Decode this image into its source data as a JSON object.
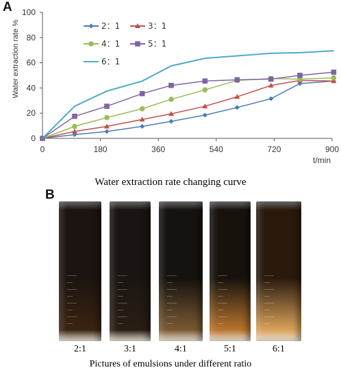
{
  "panel_a": {
    "label": "A",
    "caption": "Water extraction rate changing curve"
  },
  "panel_b": {
    "label": "B",
    "caption": "Pictures of emulsions under different ratio",
    "tubes": [
      {
        "label": "2:1",
        "top_color": "#1c1410",
        "bottom_color": "#3a2410"
      },
      {
        "label": "3:1",
        "top_color": "#1a1512",
        "bottom_color": "#2a1e14"
      },
      {
        "label": "4:1",
        "top_color": "#16120f",
        "bottom_color": "#7a5a33"
      },
      {
        "label": "5:1",
        "top_color": "#18120d",
        "bottom_color": "#b8752e"
      },
      {
        "label": "6:1",
        "top_color": "#2a1a0e",
        "bottom_color": "#d9a25a"
      }
    ]
  },
  "chart_data": {
    "type": "line",
    "title": "",
    "xlabel": "t/min",
    "ylabel": "Water extraction rate %",
    "xlim": [
      0,
      900
    ],
    "ylim": [
      0,
      100
    ],
    "xticks": [
      0,
      180,
      360,
      540,
      720,
      900
    ],
    "yticks": [
      0,
      20,
      40,
      60,
      80,
      100
    ],
    "grid": false,
    "legend_position": "top-left",
    "x": [
      0,
      100,
      200,
      310,
      400,
      505,
      605,
      710,
      800,
      905
    ],
    "series": [
      {
        "name": "2：1",
        "marker": "diamond",
        "color": "#4a7ab8",
        "values": [
          0,
          3,
          5.5,
          9.5,
          13.5,
          18.5,
          24.5,
          31.5,
          43.5,
          45.5
        ]
      },
      {
        "name": "3：1",
        "marker": "triangle",
        "color": "#c0504d",
        "values": [
          0,
          5.5,
          9.5,
          15,
          19.5,
          25.5,
          33,
          42,
          46,
          45.5
        ]
      },
      {
        "name": "4：1",
        "marker": "circle",
        "color": "#9bbb59",
        "values": [
          0,
          9.5,
          16.5,
          23.5,
          31,
          38.5,
          46,
          47.5,
          47,
          48
        ]
      },
      {
        "name": "5：1",
        "marker": "square",
        "color": "#8064a2",
        "values": [
          0,
          17.5,
          25.5,
          35.5,
          42,
          45.5,
          46.5,
          47,
          50,
          52.5
        ]
      },
      {
        "name": "6：1",
        "marker": "none",
        "color": "#4bacc6",
        "values": [
          0,
          25.5,
          37.5,
          45.5,
          57.5,
          63.5,
          65.5,
          67.5,
          68,
          69.5
        ]
      }
    ]
  }
}
